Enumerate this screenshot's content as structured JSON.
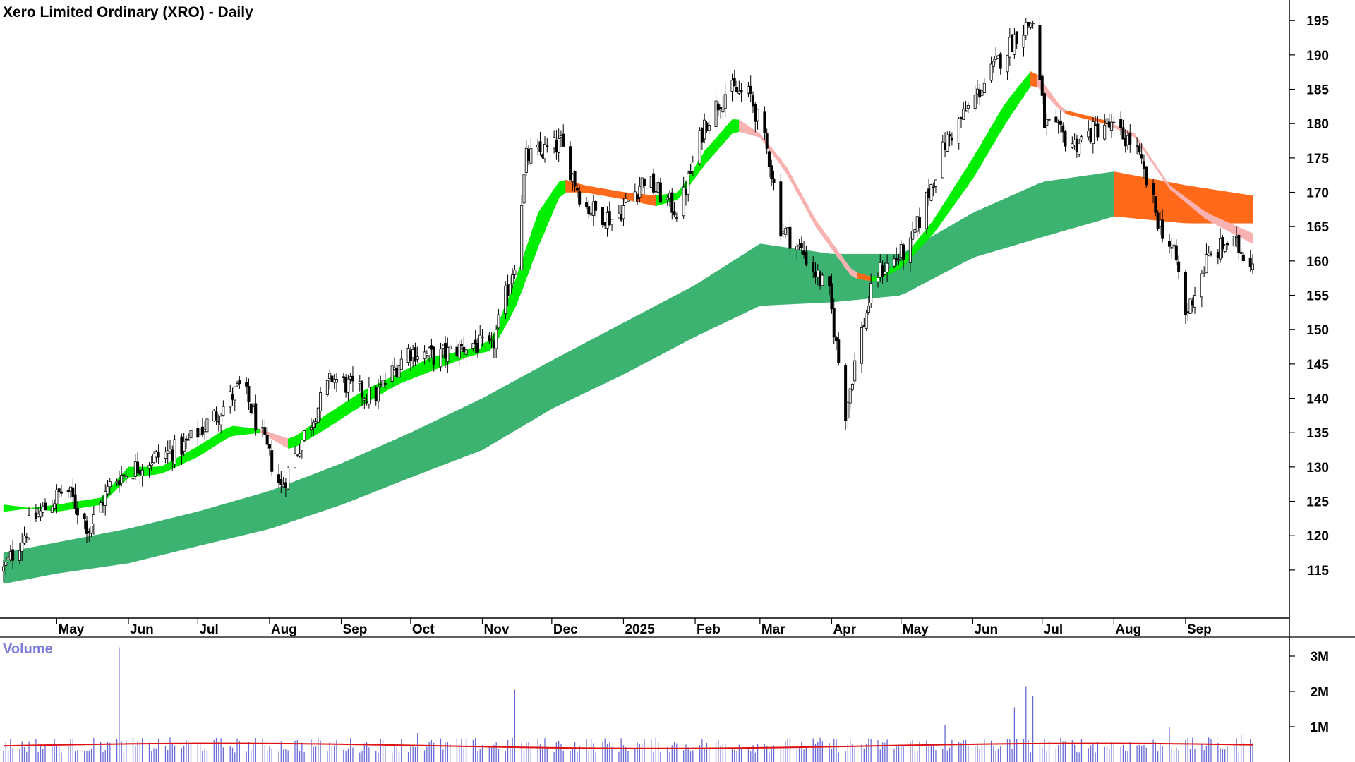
{
  "chart_data": {
    "type": "candlestick",
    "title": "Xero Limited Ordinary (XRO) - Daily",
    "price_axis": {
      "ylim": [
        108,
        198
      ],
      "ticks": [
        115,
        120,
        125,
        130,
        135,
        140,
        145,
        150,
        155,
        160,
        165,
        170,
        175,
        180,
        185,
        190,
        195
      ]
    },
    "x_axis": {
      "start": "2024-04-08",
      "end": "2025-09-30",
      "labels": [
        {
          "date": "2024-05-01",
          "text": "May"
        },
        {
          "date": "2024-06-01",
          "text": "Jun"
        },
        {
          "date": "2024-07-01",
          "text": "Jul"
        },
        {
          "date": "2024-08-01",
          "text": "Aug"
        },
        {
          "date": "2024-09-01",
          "text": "Sep"
        },
        {
          "date": "2024-10-01",
          "text": "Oct"
        },
        {
          "date": "2024-11-01",
          "text": "Nov"
        },
        {
          "date": "2024-12-01",
          "text": "Dec"
        },
        {
          "date": "2025-01-01",
          "text": "2025"
        },
        {
          "date": "2025-02-01",
          "text": "Feb"
        },
        {
          "date": "2025-03-01",
          "text": "Mar"
        },
        {
          "date": "2025-04-01",
          "text": "Apr"
        },
        {
          "date": "2025-05-01",
          "text": "May"
        },
        {
          "date": "2025-06-01",
          "text": "Jun"
        },
        {
          "date": "2025-07-01",
          "text": "Jul"
        },
        {
          "date": "2025-08-01",
          "text": "Aug"
        },
        {
          "date": "2025-09-01",
          "text": "Sep"
        }
      ]
    },
    "price_path": [
      [
        "2024-04-08",
        115
      ],
      [
        "2024-04-20",
        122
      ],
      [
        "2024-05-05",
        127
      ],
      [
        "2024-05-15",
        121
      ],
      [
        "2024-05-25",
        128
      ],
      [
        "2024-06-10",
        131
      ],
      [
        "2024-06-25",
        133
      ],
      [
        "2024-07-10",
        138
      ],
      [
        "2024-07-20",
        142
      ],
      [
        "2024-07-28",
        135
      ],
      [
        "2024-08-06",
        127
      ],
      [
        "2024-08-15",
        134
      ],
      [
        "2024-08-28",
        143
      ],
      [
        "2024-09-15",
        140
      ],
      [
        "2024-09-30",
        147
      ],
      [
        "2024-10-12",
        146
      ],
      [
        "2024-10-28",
        148
      ],
      [
        "2024-11-05",
        147
      ],
      [
        "2024-11-15",
        160
      ],
      [
        "2024-11-20",
        175
      ],
      [
        "2024-12-05",
        177
      ],
      [
        "2024-12-15",
        168
      ],
      [
        "2024-12-28",
        166
      ],
      [
        "2025-01-10",
        172
      ],
      [
        "2025-01-25",
        167
      ],
      [
        "2025-02-05",
        180
      ],
      [
        "2025-02-15",
        185
      ],
      [
        "2025-02-25",
        184
      ],
      [
        "2025-03-05",
        175
      ],
      [
        "2025-03-10",
        165
      ],
      [
        "2025-03-20",
        161
      ],
      [
        "2025-03-31",
        155
      ],
      [
        "2025-04-07",
        138
      ],
      [
        "2025-04-12",
        147
      ],
      [
        "2025-04-20",
        158
      ],
      [
        "2025-05-05",
        162
      ],
      [
        "2025-05-20",
        177
      ],
      [
        "2025-06-10",
        188
      ],
      [
        "2025-06-20",
        193
      ],
      [
        "2025-06-27",
        195
      ],
      [
        "2025-07-02",
        180
      ],
      [
        "2025-07-15",
        177
      ],
      [
        "2025-07-28",
        180
      ],
      [
        "2025-08-10",
        177
      ],
      [
        "2025-08-20",
        166
      ],
      [
        "2025-08-28",
        160
      ],
      [
        "2025-09-01",
        152
      ],
      [
        "2025-09-10",
        160
      ],
      [
        "2025-09-20",
        163
      ],
      [
        "2025-09-30",
        160
      ]
    ],
    "short_ribbon": [
      [
        "2024-04-08",
        124.5,
        123.5
      ],
      [
        "2024-05-01",
        123.5,
        124.5
      ],
      [
        "2024-05-20",
        124.5,
        125.5
      ],
      [
        "2024-06-01",
        128.5,
        130
      ],
      [
        "2024-06-15",
        129,
        130
      ],
      [
        "2024-07-01",
        131.5,
        133
      ],
      [
        "2024-07-15",
        134.5,
        136
      ],
      [
        "2024-07-28",
        135,
        135.5
      ],
      [
        "2024-08-10",
        132.5,
        134
      ],
      [
        "2024-08-25",
        135.5,
        137.5
      ],
      [
        "2024-09-10",
        139,
        141
      ],
      [
        "2024-09-25",
        142,
        143.5
      ],
      [
        "2024-10-10",
        144,
        146
      ],
      [
        "2024-10-25",
        146,
        147
      ],
      [
        "2024-11-05",
        147,
        148.5
      ],
      [
        "2024-11-15",
        153,
        157
      ],
      [
        "2024-11-25",
        162,
        167
      ],
      [
        "2024-12-05",
        170,
        172
      ],
      [
        "2024-12-15",
        170,
        171
      ],
      [
        "2025-01-01",
        169,
        170
      ],
      [
        "2025-01-15",
        168,
        169.5
      ],
      [
        "2025-01-25",
        169,
        170
      ],
      [
        "2025-02-05",
        174,
        176
      ],
      [
        "2025-02-18",
        179,
        181
      ],
      [
        "2025-03-01",
        178,
        178.5
      ],
      [
        "2025-03-12",
        173,
        174
      ],
      [
        "2025-03-25",
        165,
        166
      ],
      [
        "2025-04-10",
        157.5,
        158.5
      ],
      [
        "2025-04-20",
        157,
        157.5
      ],
      [
        "2025-05-01",
        159,
        160
      ],
      [
        "2025-05-15",
        164,
        166
      ],
      [
        "2025-06-01",
        172,
        175
      ],
      [
        "2025-06-15",
        180,
        183
      ],
      [
        "2025-06-27",
        186,
        188
      ],
      [
        "2025-07-10",
        181.5,
        182
      ],
      [
        "2025-07-28",
        180,
        180.5
      ],
      [
        "2025-08-10",
        178,
        178.5
      ],
      [
        "2025-08-25",
        170.5,
        171
      ],
      [
        "2025-09-10",
        166,
        167
      ],
      [
        "2025-09-30",
        162.5,
        164
      ]
    ],
    "long_ribbon": [
      [
        "2024-04-08",
        113,
        117.5
      ],
      [
        "2024-05-01",
        114.5,
        119
      ],
      [
        "2024-06-01",
        116,
        121
      ],
      [
        "2024-07-01",
        118.5,
        123.5
      ],
      [
        "2024-08-01",
        121,
        126.5
      ],
      [
        "2024-09-01",
        124.5,
        130.5
      ],
      [
        "2024-10-01",
        128.5,
        135
      ],
      [
        "2024-11-01",
        132.5,
        140
      ],
      [
        "2024-12-01",
        138.5,
        145.5
      ],
      [
        "2025-01-01",
        143.5,
        151
      ],
      [
        "2025-02-01",
        149,
        156.5
      ],
      [
        "2025-03-01",
        153.5,
        162.5
      ],
      [
        "2025-04-01",
        154,
        161
      ],
      [
        "2025-05-01",
        155,
        161
      ],
      [
        "2025-06-01",
        160.5,
        167
      ],
      [
        "2025-07-01",
        163.5,
        171.5
      ],
      [
        "2025-08-01",
        166.5,
        173
      ],
      [
        "2025-09-01",
        165.5,
        171
      ],
      [
        "2025-09-30",
        165.5,
        169.5
      ]
    ],
    "short_ribbon_colors": {
      "up": "#00ee00",
      "down": "#ff6a1a",
      "weak_down": "#f9b2b2"
    },
    "long_ribbon_colors": {
      "up": "#3cb371",
      "down": "#ff6a1a"
    },
    "volume": {
      "title": "Volume",
      "ylim": [
        0,
        3500000
      ],
      "ticks": [
        {
          "value": 1000000,
          "text": "1M"
        },
        {
          "value": 2000000,
          "text": "2M"
        },
        {
          "value": 3000000,
          "text": "3M"
        }
      ],
      "average": 480000,
      "spikes": [
        [
          "2024-05-28",
          3250000
        ],
        [
          "2024-11-15",
          2050000
        ],
        [
          "2024-10-04",
          820000
        ],
        [
          "2025-06-24",
          2150000
        ],
        [
          "2025-06-27",
          1880000
        ],
        [
          "2025-06-19",
          1550000
        ],
        [
          "2025-05-20",
          1050000
        ],
        [
          "2025-08-25",
          1000000
        ],
        [
          "2025-09-25",
          760000
        ]
      ],
      "bar_color": "#6a6ad6",
      "average_color": "#e01010"
    }
  }
}
